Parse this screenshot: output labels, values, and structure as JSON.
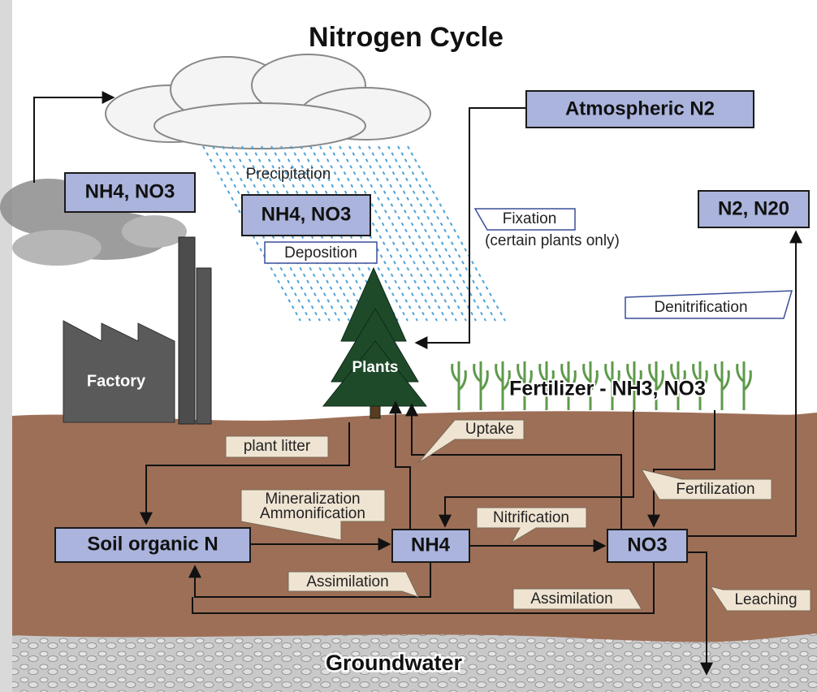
{
  "title": "Nitrogen Cycle",
  "nodes": [
    {
      "label": "Atmospheric N2"
    },
    {
      "label": "NH4, NO3"
    },
    {
      "label": "NH4, NO3"
    },
    {
      "label": "N2, N20"
    },
    {
      "label": "Soil organic N"
    },
    {
      "label": "NH4"
    },
    {
      "label": "NO3"
    }
  ],
  "labels": [
    "Precipitation",
    "Deposition",
    "Fixation",
    "(certain plants only)",
    "Denitrification",
    "Factory",
    "Plants",
    "Fertilizer - NH3, NO3",
    "plant litter",
    "Uptake",
    "Mineralization",
    "Ammonification",
    "Nitrification",
    "Fertilization",
    "Assimilation",
    "Assimilation",
    "Leaching",
    "Groundwater"
  ]
}
